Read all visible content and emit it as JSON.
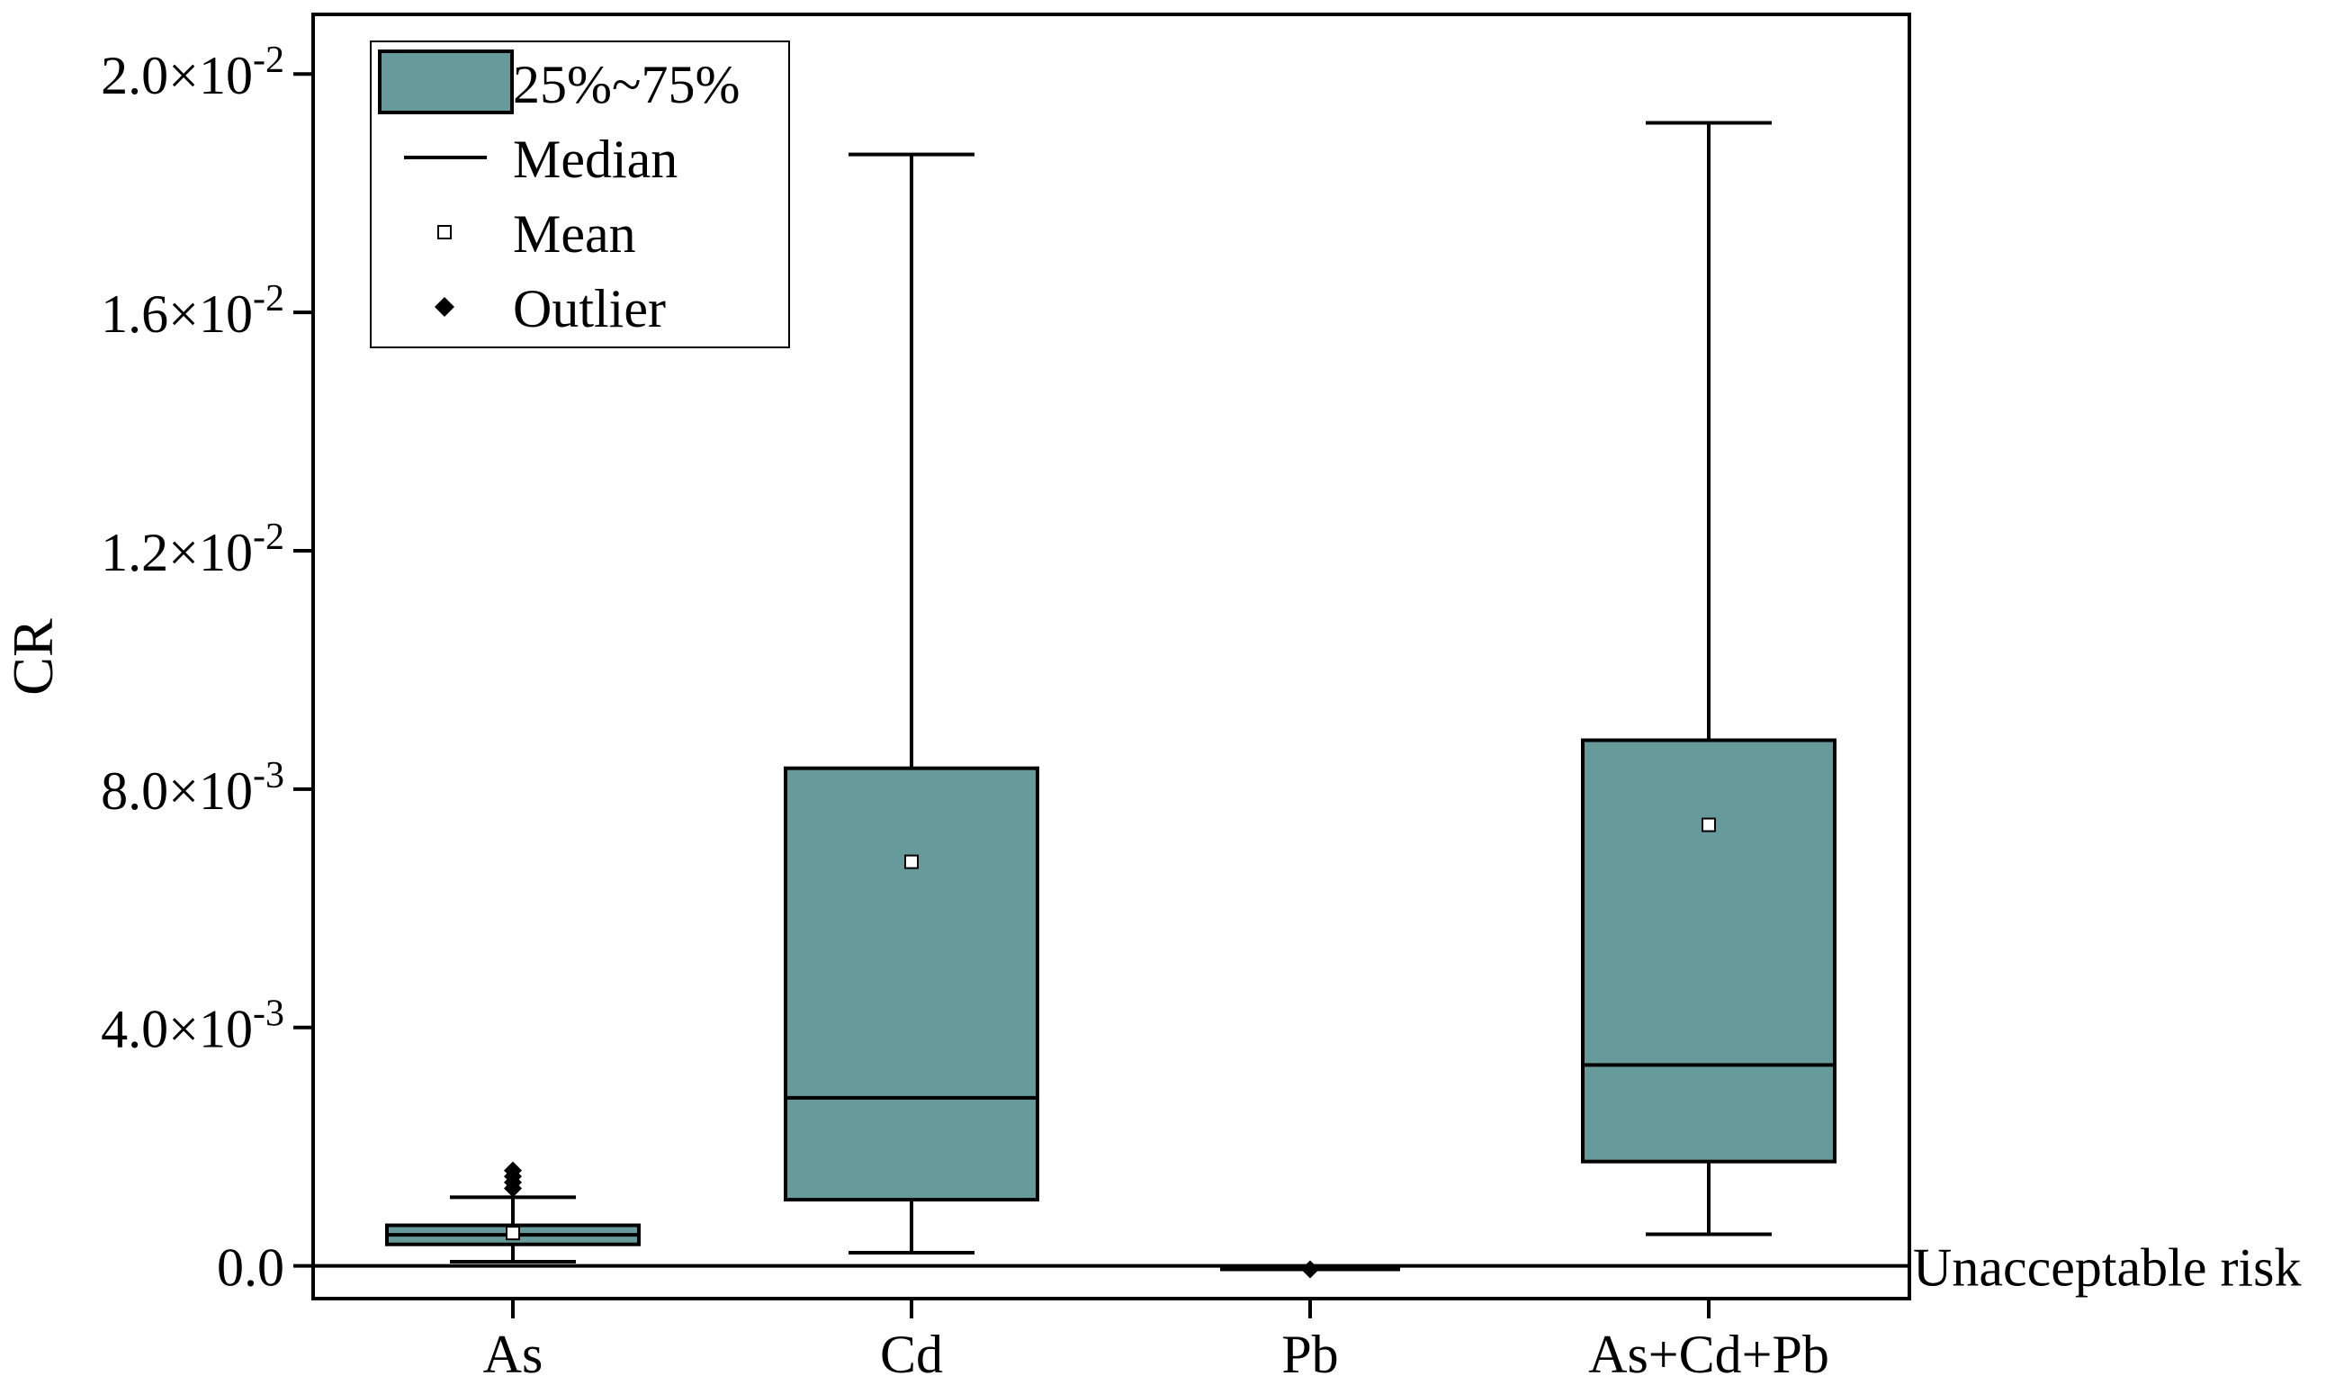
{
  "chart_data": {
    "type": "box",
    "title": "",
    "xlabel": "",
    "ylabel": "CR",
    "ylim": [
      -0.00055,
      0.021
    ],
    "box_color": "#679A9A",
    "categories": [
      "As",
      "Cd",
      "Pb",
      "As+Cd+Pb"
    ],
    "boxes": [
      {
        "name": "As",
        "whisker_low": 7e-05,
        "q1": 0.00036,
        "median": 0.00052,
        "q3": 0.00068,
        "whisker_high": 0.00115,
        "mean": 0.00055,
        "outliers": [
          0.0013,
          0.0014,
          0.0015,
          0.0016
        ]
      },
      {
        "name": "Cd",
        "whisker_low": 0.00022,
        "q1": 0.00111,
        "median": 0.00282,
        "q3": 0.00835,
        "whisker_high": 0.01865,
        "mean": 0.00678,
        "outliers": []
      },
      {
        "name": "Pb",
        "whisker_low": -6e-05,
        "q1": -6e-05,
        "median": -6e-05,
        "q3": -6e-05,
        "whisker_high": -6e-05,
        "mean": -6e-05,
        "outliers": [
          -6e-05
        ]
      },
      {
        "name": "As+Cd+Pb",
        "whisker_low": 0.00053,
        "q1": 0.00175,
        "median": 0.00337,
        "q3": 0.00882,
        "whisker_high": 0.01918,
        "mean": 0.0074,
        "outliers": []
      }
    ],
    "yticks": [
      {
        "value": 0.0,
        "mantissa": "0.0",
        "exponent": ""
      },
      {
        "value": 0.004,
        "mantissa": "4.0×10",
        "exponent": "-3"
      },
      {
        "value": 0.008,
        "mantissa": "8.0×10",
        "exponent": "-3"
      },
      {
        "value": 0.012,
        "mantissa": "1.2×10",
        "exponent": "-2"
      },
      {
        "value": 0.016,
        "mantissa": "1.6×10",
        "exponent": "-2"
      },
      {
        "value": 0.02,
        "mantissa": "2.0×10",
        "exponent": "-2"
      }
    ],
    "reference_line": {
      "value": 0.0,
      "label": "Unacceptable risk"
    },
    "legend": {
      "position": "top-left",
      "entries": [
        {
          "kind": "box",
          "label": "25%~75%"
        },
        {
          "kind": "line",
          "label": "Median"
        },
        {
          "kind": "square",
          "label": "Mean"
        },
        {
          "kind": "diamond",
          "label": "Outlier"
        }
      ]
    }
  }
}
